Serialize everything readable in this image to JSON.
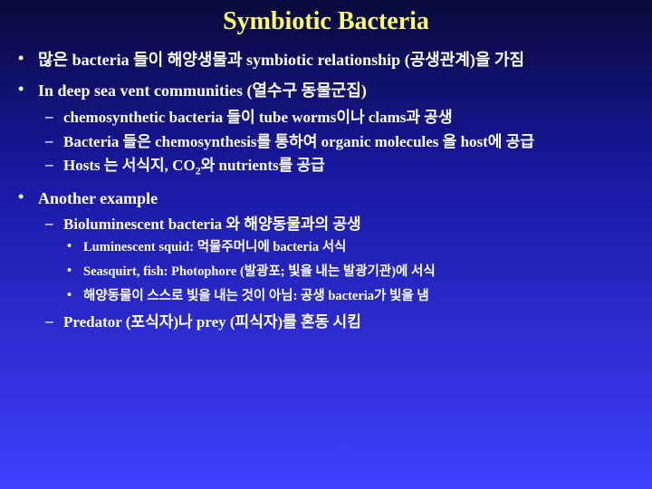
{
  "title": "Symbiotic Bacteria",
  "bullets": {
    "dot": "•",
    "dash": "–"
  },
  "items": [
    {
      "text": "많은 bacteria 들이 해양생물과 symbiotic relationship (공생관계)을 가짐"
    },
    {
      "text": "In deep sea vent communities (열수구 동물군집)",
      "sub": [
        {
          "text": "chemosynthetic bacteria 들이 tube worms이나 clams과 공생"
        },
        {
          "text": "Bacteria 들은 chemosynthesis를 통하여 organic molecules 을 host에 공급"
        },
        {
          "text_html": "Hosts 는 서식지, CO<span class=\"sub\">2</span>와 nutrients를 공급"
        }
      ]
    },
    {
      "text": "Another example",
      "sub": [
        {
          "text": "Bioluminescent bacteria 와 해양동물과의 공생",
          "sub": [
            {
              "text": "Luminescent squid: 먹물주머니에 bacteria 서식"
            },
            {
              "text": "Seasquirt, fish: Photophore (발광포; 빛을 내는 발광기관)에 서식"
            },
            {
              "text": "해양동물이 스스로 빛을 내는 것이 아님: 공생 bacteria가 빛을 냄"
            }
          ]
        },
        {
          "text": "Predator (포식자)나 prey (피식자)를 혼동 시킴"
        }
      ]
    }
  ],
  "colors": {
    "title": "#ffff66",
    "text": "#ffffff",
    "bg_top": "#0a0a3a",
    "bg_mid": "#1818a0",
    "bg_bot": "#4040ff"
  }
}
